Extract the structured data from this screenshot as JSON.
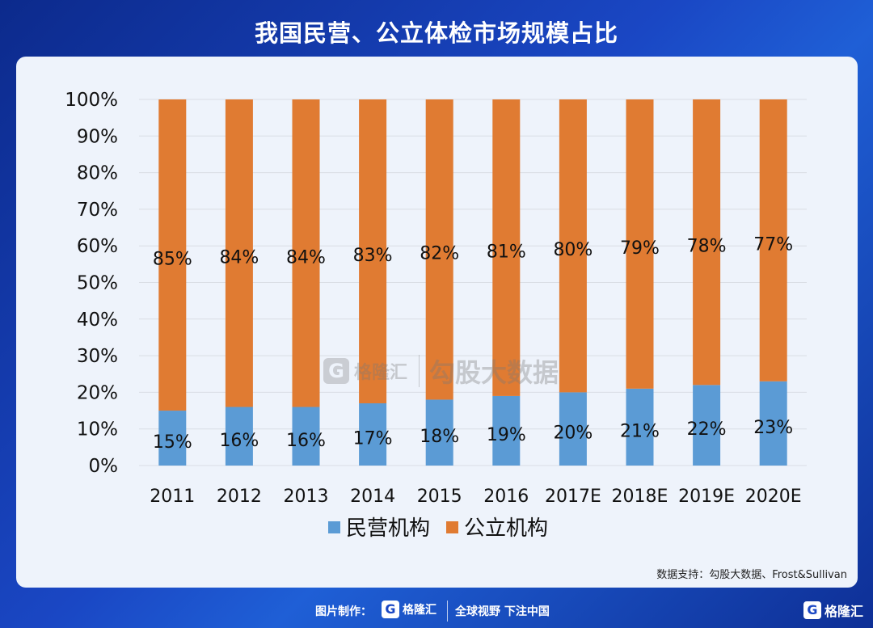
{
  "title": "我国民营、公立体检市场规模占比",
  "source": "数据支持：勾股大数据、Frost&Sullivan",
  "watermark": {
    "logo_letter": "G",
    "logo_text": "格隆汇",
    "text": "勾股大数据"
  },
  "footer": {
    "made_by": "图片制作：",
    "logo_letter": "G",
    "logo_text": "格隆汇",
    "slogan": "全球视野 下注中国",
    "corner_logo": "格隆汇"
  },
  "colors": {
    "private": "#5b9bd5",
    "public": "#e07b32"
  },
  "chart_data": {
    "type": "bar",
    "stacked": true,
    "categories": [
      "2011",
      "2012",
      "2013",
      "2014",
      "2015",
      "2016",
      "2017E",
      "2018E",
      "2019E",
      "2020E"
    ],
    "series": [
      {
        "name": "民营机构",
        "values": [
          15,
          16,
          16,
          17,
          18,
          19,
          20,
          21,
          22,
          23
        ],
        "labels": [
          "15%",
          "16%",
          "16%",
          "17%",
          "18%",
          "19%",
          "20%",
          "21%",
          "22%",
          "23%"
        ]
      },
      {
        "name": "公立机构",
        "values": [
          85,
          84,
          84,
          83,
          82,
          81,
          80,
          79,
          78,
          77
        ],
        "labels": [
          "85%",
          "84%",
          "84%",
          "83%",
          "82%",
          "81%",
          "80%",
          "79%",
          "78%",
          "77%"
        ]
      }
    ],
    "ylim": [
      0,
      100
    ],
    "yticks": [
      "0%",
      "10%",
      "20%",
      "30%",
      "40%",
      "50%",
      "60%",
      "70%",
      "80%",
      "90%",
      "100%"
    ],
    "grid": true,
    "legend": "bottom"
  }
}
